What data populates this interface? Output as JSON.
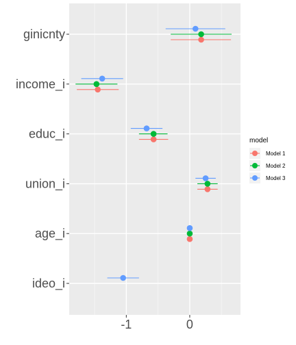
{
  "chart_data": {
    "type": "scatter",
    "subtype": "coefficient-plot-horizontal",
    "title": "",
    "xlabel": "",
    "ylabel": "",
    "xlim": [
      -1.9,
      0.8
    ],
    "x_ticks": [
      -1,
      0
    ],
    "x_tick_labels": [
      "-1",
      "0"
    ],
    "grid": true,
    "categories": [
      "ideo_i",
      "age_i",
      "union_i",
      "educ_i",
      "income_i",
      "ginicnty"
    ],
    "legend": {
      "title": "model",
      "position": "right",
      "entries": [
        "Model 1",
        "Model 2",
        "Model 3"
      ]
    },
    "series": [
      {
        "name": "Model 1",
        "color": "#F8766D",
        "points": [
          {
            "category": "ginicnty",
            "estimate": 0.18,
            "lower": -0.3,
            "upper": 0.65
          },
          {
            "category": "income_i",
            "estimate": -1.45,
            "lower": -1.78,
            "upper": -1.12
          },
          {
            "category": "educ_i",
            "estimate": -0.57,
            "lower": -0.8,
            "upper": -0.34
          },
          {
            "category": "union_i",
            "estimate": 0.28,
            "lower": 0.12,
            "upper": 0.44
          },
          {
            "category": "age_i",
            "estimate": 0.0,
            "lower": -0.02,
            "upper": 0.02
          }
        ]
      },
      {
        "name": "Model 2",
        "color": "#00BA38",
        "points": [
          {
            "category": "ginicnty",
            "estimate": 0.18,
            "lower": -0.3,
            "upper": 0.66
          },
          {
            "category": "income_i",
            "estimate": -1.47,
            "lower": -1.8,
            "upper": -1.14
          },
          {
            "category": "educ_i",
            "estimate": -0.57,
            "lower": -0.8,
            "upper": -0.35
          },
          {
            "category": "union_i",
            "estimate": 0.28,
            "lower": 0.12,
            "upper": 0.44
          },
          {
            "category": "age_i",
            "estimate": 0.0,
            "lower": -0.02,
            "upper": 0.02
          }
        ]
      },
      {
        "name": "Model 3",
        "color": "#619CFF",
        "points": [
          {
            "category": "ginicnty",
            "estimate": 0.09,
            "lower": -0.38,
            "upper": 0.56
          },
          {
            "category": "income_i",
            "estimate": -1.38,
            "lower": -1.71,
            "upper": -1.05
          },
          {
            "category": "educ_i",
            "estimate": -0.68,
            "lower": -0.93,
            "upper": -0.43
          },
          {
            "category": "union_i",
            "estimate": 0.25,
            "lower": 0.09,
            "upper": 0.41
          },
          {
            "category": "age_i",
            "estimate": 0.0,
            "lower": -0.02,
            "upper": 0.02
          },
          {
            "category": "ideo_i",
            "estimate": -1.05,
            "lower": -1.3,
            "upper": -0.8
          }
        ]
      }
    ]
  }
}
